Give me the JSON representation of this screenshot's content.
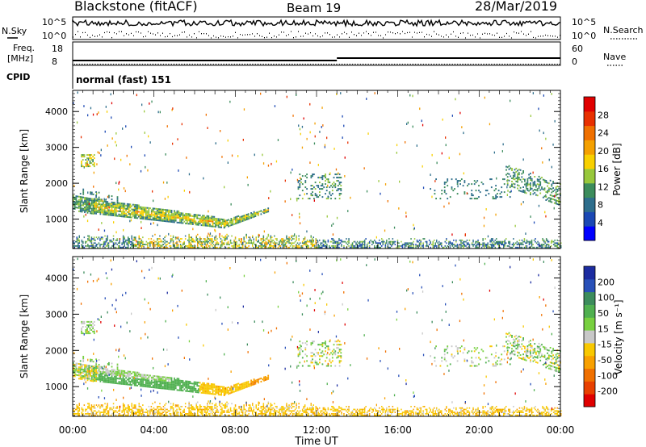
{
  "header": {
    "station": "Blackstone (fitACF)",
    "beam": "Beam 19",
    "date": "28/Mar/2019"
  },
  "strip_labels": {
    "nsky": "N.Sky",
    "nsearch": "N.Search",
    "freq": "Freq.",
    "freq_unit": "[MHz]",
    "nave": "Nave",
    "cpid": "CPID",
    "cpid_value": "normal (fast) 151",
    "nsky_ticks": [
      "10^5",
      "10^0"
    ],
    "nsearch_ticks": [
      "10^5",
      "10^0"
    ],
    "freq_ticks": [
      "18",
      "8"
    ],
    "nave_ticks": [
      "60",
      "0"
    ]
  },
  "chart_data": [
    {
      "type": "heatmap",
      "name": "power",
      "xlabel": "",
      "ylabel": "Slant Range [km]",
      "x_ticks": [
        "00:00",
        "04:00",
        "08:00",
        "12:00",
        "16:00",
        "20:00",
        "00:00"
      ],
      "x_range_hours": [
        0,
        24
      ],
      "y_ticks": [
        1000,
        2000,
        3000,
        4000
      ],
      "y_range_km": [
        180,
        4590
      ],
      "colorbar": {
        "label": "Power [dB]",
        "ticks": [
          4,
          8,
          12,
          16,
          20,
          24,
          28
        ],
        "colors": [
          "#0000ff",
          "#1b48b4",
          "#2e6e8c",
          "#3c8c5c",
          "#98c83c",
          "#f8d000",
          "#f4a000",
          "#f07000",
          "#e83000",
          "#e00000"
        ]
      }
    },
    {
      "type": "heatmap",
      "name": "velocity",
      "xlabel": "Time UT",
      "ylabel": "Slant Range [km]",
      "x_ticks": [
        "00:00",
        "04:00",
        "08:00",
        "12:00",
        "16:00",
        "20:00",
        "00:00"
      ],
      "x_range_hours": [
        0,
        24
      ],
      "y_ticks": [
        1000,
        2000,
        3000,
        4000
      ],
      "y_range_km": [
        180,
        4590
      ],
      "colorbar": {
        "label": "Velocity [m s⁻¹]",
        "ticks": [
          200,
          100,
          50,
          15,
          -15,
          -50,
          -100,
          -200
        ],
        "colors": [
          "#1c2ca0",
          "#2850b8",
          "#3c8c5c",
          "#50b050",
          "#78d040",
          "#c8c8c8",
          "#f8c800",
          "#f8a000",
          "#f07000",
          "#e84000",
          "#e00000"
        ]
      }
    }
  ]
}
